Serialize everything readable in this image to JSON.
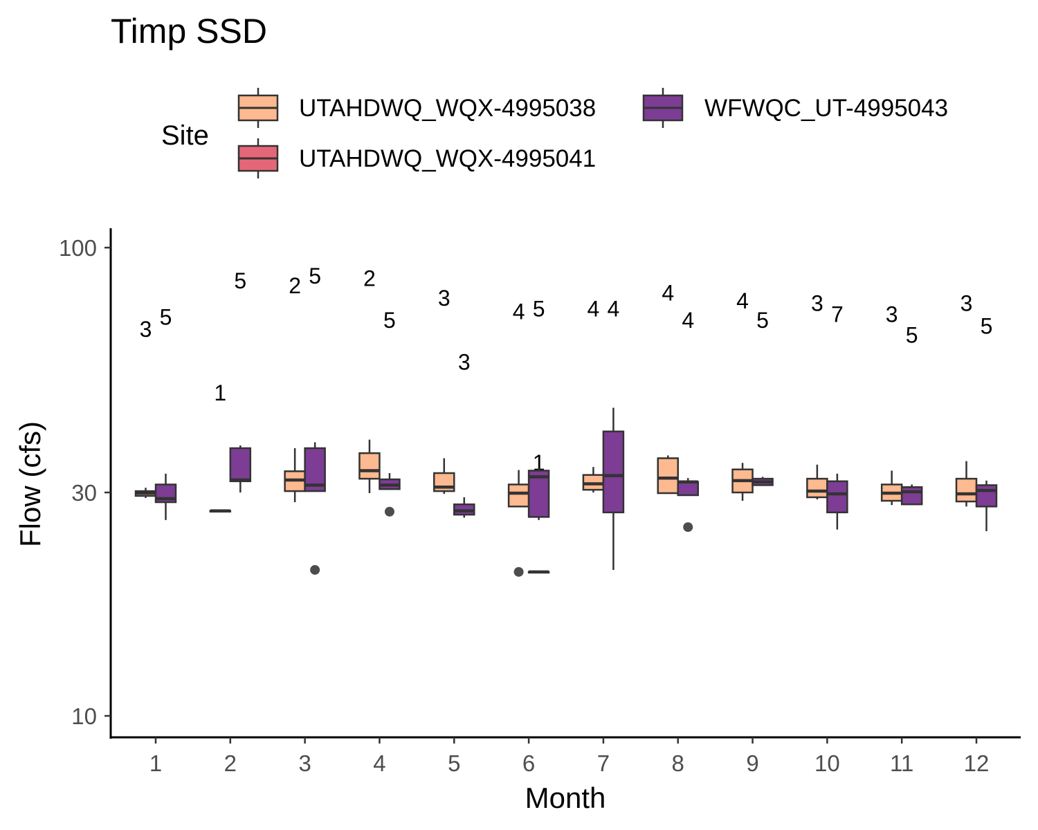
{
  "chart_data": {
    "type": "boxplot",
    "title": "Timp SSD",
    "xlabel": "Month",
    "ylabel": "Flow (cfs)",
    "y_scale": "log10",
    "ylim": [
      9,
      110
    ],
    "y_ticks": [
      10,
      30,
      100
    ],
    "y_tick_labels": [
      "10",
      "30",
      "100"
    ],
    "categories": [
      "1",
      "2",
      "3",
      "4",
      "5",
      "6",
      "7",
      "8",
      "9",
      "10",
      "11",
      "12"
    ],
    "legend": {
      "title": "Site",
      "position": "top",
      "entries": [
        {
          "name": "UTAHDWQ_WQX-4995038",
          "color": "#FDB98F"
        },
        {
          "name": "UTAHDWQ_WQX-4995041",
          "color": "#E46779"
        },
        {
          "name": "WFWQC_UT-4995043",
          "color": "#7D3D94"
        }
      ]
    },
    "series": [
      {
        "name": "UTAHDWQ_WQX-4995038",
        "color": "#FDB98F",
        "boxes": [
          {
            "month": "1",
            "count": "3",
            "count_y": 67,
            "min": 29.2,
            "q1": 29.5,
            "median": 29.9,
            "q3": 30.2,
            "max": 30.7,
            "outliers": []
          },
          {
            "month": "2",
            "count": "1",
            "count_y": 49,
            "min": 27.4,
            "q1": 27.4,
            "median": 27.4,
            "q3": 27.4,
            "max": 27.4,
            "outliers": []
          },
          {
            "month": "3",
            "count": "2",
            "count_y": 83,
            "min": 28.6,
            "q1": 30.2,
            "median": 31.9,
            "q3": 33.3,
            "max": 37.3,
            "outliers": []
          },
          {
            "month": "4",
            "count": "2",
            "count_y": 86,
            "min": 29.9,
            "q1": 32.1,
            "median": 33.4,
            "q3": 36.4,
            "max": 38.9,
            "outliers": []
          },
          {
            "month": "5",
            "count": "3",
            "count_y": 78,
            "min": 29.8,
            "q1": 30.2,
            "median": 30.8,
            "q3": 33.0,
            "max": 35.5,
            "outliers": []
          },
          {
            "month": "6",
            "count": "4",
            "count_y": 73,
            "min": 28.0,
            "q1": 28.0,
            "median": 29.9,
            "q3": 31.2,
            "max": 33.5,
            "outliers": [
              20.3
            ]
          },
          {
            "month": "7",
            "count": "4",
            "count_y": 74,
            "min": 30.0,
            "q1": 30.4,
            "median": 31.3,
            "q3": 32.7,
            "max": 34.0,
            "outliers": []
          },
          {
            "month": "8",
            "count": "4",
            "count_y": 80,
            "min": 29.9,
            "q1": 29.9,
            "median": 32.2,
            "q3": 35.5,
            "max": 36.0,
            "outliers": []
          },
          {
            "month": "9",
            "count": "4",
            "count_y": 77,
            "min": 28.8,
            "q1": 30.0,
            "median": 31.8,
            "q3": 33.6,
            "max": 34.7,
            "outliers": []
          },
          {
            "month": "10",
            "count": "3",
            "count_y": 76,
            "min": 29.0,
            "q1": 29.3,
            "median": 30.2,
            "q3": 32.1,
            "max": 34.4,
            "outliers": []
          },
          {
            "month": "11",
            "count": "3",
            "count_y": 72,
            "min": 28.2,
            "q1": 28.8,
            "median": 29.9,
            "q3": 31.2,
            "max": 33.4,
            "outliers": []
          },
          {
            "month": "12",
            "count": "3",
            "count_y": 76,
            "min": 28.0,
            "q1": 28.7,
            "median": 29.8,
            "q3": 32.1,
            "max": 35.0,
            "outliers": []
          }
        ]
      },
      {
        "name": "UTAHDWQ_WQX-4995041",
        "color": "#E46779",
        "boxes": [
          {
            "month": "6",
            "count": "1",
            "count_y": 34.7,
            "min": 20.3,
            "q1": 20.3,
            "median": 20.3,
            "q3": 20.3,
            "max": 20.3,
            "outliers": []
          }
        ]
      },
      {
        "name": "WFWQC_UT-4995043",
        "color": "#7D3D94",
        "boxes": [
          {
            "month": "1",
            "count": "5",
            "count_y": 71,
            "min": 26.2,
            "q1": 28.6,
            "median": 29.1,
            "q3": 31.2,
            "max": 32.9,
            "outliers": []
          },
          {
            "month": "2",
            "count": "5",
            "count_y": 85,
            "min": 30.0,
            "q1": 31.7,
            "median": 31.9,
            "q3": 37.3,
            "max": 37.8,
            "outliers": []
          },
          {
            "month": "3",
            "count": "5",
            "count_y": 87,
            "min": 30.1,
            "q1": 30.2,
            "median": 31.1,
            "q3": 37.3,
            "max": 38.4,
            "outliers": [
              20.5
            ]
          },
          {
            "month": "4",
            "count": "5",
            "count_y": 70,
            "min": 30.5,
            "q1": 30.5,
            "median": 31.1,
            "q3": 32.0,
            "max": 33.0,
            "outliers": [
              27.3
            ]
          },
          {
            "month": "5",
            "count": "3",
            "count_y": 57,
            "min": 26.5,
            "q1": 26.9,
            "median": 27.4,
            "q3": 28.3,
            "max": 29.3,
            "outliers": []
          },
          {
            "month": "6",
            "count": "5",
            "count_y": 74,
            "min": 26.2,
            "q1": 26.6,
            "median": 32.4,
            "q3": 33.4,
            "max": 33.8,
            "outliers": []
          },
          {
            "month": "7",
            "count": "4",
            "count_y": 74,
            "min": 20.5,
            "q1": 27.2,
            "median": 32.6,
            "q3": 40.5,
            "max": 45.5,
            "outliers": []
          },
          {
            "month": "8",
            "count": "4",
            "count_y": 70,
            "min": 29.6,
            "q1": 29.6,
            "median": 31.6,
            "q3": 31.6,
            "max": 32.2,
            "outliers": [
              25.3
            ]
          },
          {
            "month": "9",
            "count": "5",
            "count_y": 70,
            "min": 31.1,
            "q1": 31.1,
            "median": 31.6,
            "q3": 32.1,
            "max": 32.4,
            "outliers": []
          },
          {
            "month": "10",
            "count": "7",
            "count_y": 72,
            "min": 25.0,
            "q1": 27.2,
            "median": 29.8,
            "q3": 31.7,
            "max": 32.9,
            "outliers": []
          },
          {
            "month": "11",
            "count": "5",
            "count_y": 65,
            "min": 28.2,
            "q1": 28.3,
            "median": 30.1,
            "q3": 30.8,
            "max": 31.2,
            "outliers": []
          },
          {
            "month": "12",
            "count": "5",
            "count_y": 68,
            "min": 24.8,
            "q1": 28.0,
            "median": 30.3,
            "q3": 31.1,
            "max": 31.8,
            "outliers": []
          }
        ]
      }
    ]
  }
}
